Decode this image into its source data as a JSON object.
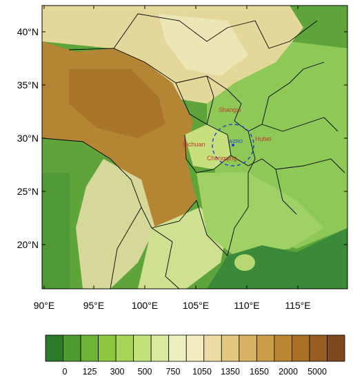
{
  "map": {
    "lat_labels": [
      "40°N",
      "35°N",
      "30°N",
      "25°N",
      "20°N"
    ],
    "lon_labels": [
      "90°E",
      "95°E",
      "100°E",
      "105°E",
      "110°E",
      "115°E"
    ],
    "lat_range": [
      16,
      43
    ],
    "lon_range": [
      90,
      120
    ],
    "places": [
      {
        "name": "Shangxi",
        "color": "#c0392b"
      },
      {
        "name": "Sichuan",
        "color": "#c0392b"
      },
      {
        "name": "Hubei",
        "color": "#c0392b"
      },
      {
        "name": "Chongqing",
        "color": "#c0392b"
      }
    ],
    "site": {
      "name": "WZRD",
      "color": "#1e3fd8"
    }
  },
  "colorbar": {
    "labels": [
      "0",
      "125",
      "300",
      "500",
      "750",
      "1050",
      "1350",
      "1650",
      "2000",
      "5000"
    ],
    "colors": [
      "#2a7a2a",
      "#4d9a2e",
      "#6fb334",
      "#8dc63f",
      "#a8d65a",
      "#c2e27a",
      "#d9ea9d",
      "#ecefbe",
      "#f4ecc0",
      "#ecdca3",
      "#e2c882",
      "#d6b262",
      "#c99c47",
      "#b98632",
      "#a87126",
      "#965e22",
      "#7e4a1d"
    ]
  },
  "colors": {
    "sea": "#3b8a3a",
    "lowland": "#8ec957",
    "hills": "#e6e7b0",
    "plateau": "#b07e2a",
    "boundary": "#000000",
    "circle": "#1e3fd8"
  }
}
